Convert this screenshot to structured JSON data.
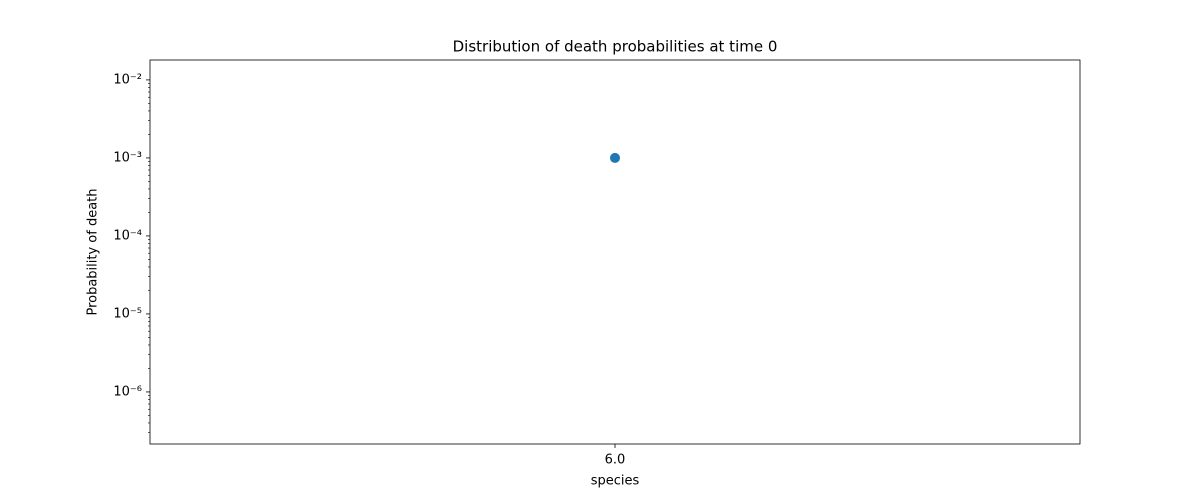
{
  "chart_data": {
    "type": "scatter",
    "title": "Distribution of death probabilities at time 0",
    "x_label": "species",
    "y_label": "Probability of death",
    "series": [
      {
        "color": "#1f77b4",
        "x": [
          6
        ],
        "values": [
          0.001
        ]
      }
    ],
    "xlim": [
      5.95,
      6.05
    ],
    "xticks": [
      {
        "value": 6,
        "label": "6.0"
      }
    ],
    "ylim": [
      2.15e-07,
      0.018
    ],
    "y_scale": "log",
    "yticks": [
      {
        "value": 1e-06,
        "label": "10⁻⁶"
      },
      {
        "value": 1e-05,
        "label": "10⁻⁵"
      },
      {
        "value": 0.0001,
        "label": "10⁻⁴"
      },
      {
        "value": 0.001,
        "label": "10⁻³"
      },
      {
        "value": 0.01,
        "label": "10⁻²"
      }
    ],
    "grid": false
  }
}
